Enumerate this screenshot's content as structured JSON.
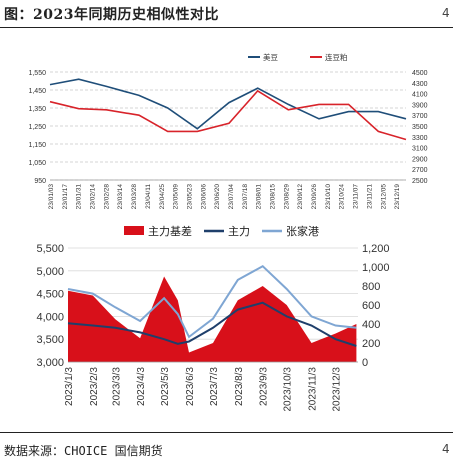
{
  "title": "图：2023年同期历史相似性对比",
  "title_right_glyph": "4",
  "source": "数据来源：CHOICE 国信期货",
  "source_right_glyph": "4",
  "colors": {
    "blue": "#1f4e79",
    "red": "#d8232a",
    "light_blue": "#7fa6d3",
    "fill_red": "#d8101a",
    "dark_blue": "#1f3f6b",
    "grid": "#c8c8c8"
  },
  "chart_data": [
    {
      "type": "line",
      "legend_position": "top-right",
      "grid": true,
      "series": [
        {
          "name": "美豆",
          "axis": "left",
          "color": "#1f4e79",
          "x": [
            "23/01/03",
            "23/02/01",
            "23/03/01",
            "23/04/03",
            "23/05/02",
            "23/06/01",
            "23/07/03",
            "23/08/01",
            "23/09/01",
            "23/10/02",
            "23/11/01",
            "23/12/01",
            "23/12/29"
          ],
          "values": [
            1480,
            1510,
            1470,
            1420,
            1350,
            1235,
            1380,
            1460,
            1370,
            1290,
            1330,
            1330,
            1290
          ]
        },
        {
          "name": "连豆粕",
          "axis": "right",
          "color": "#d8232a",
          "x": [
            "23/01/03",
            "23/02/01",
            "23/03/01",
            "23/04/03",
            "23/05/02",
            "23/06/01",
            "23/07/03",
            "23/08/01",
            "23/09/01",
            "23/10/02",
            "23/11/01",
            "23/12/01",
            "23/12/29"
          ],
          "values": [
            3950,
            3820,
            3800,
            3700,
            3400,
            3400,
            3550,
            4150,
            3800,
            3900,
            3900,
            3400,
            3250
          ]
        }
      ],
      "y_left": {
        "ticks": [
          "1,550",
          "1,450",
          "1,350",
          "1,250",
          "1,150",
          "1,050",
          "950"
        ],
        "min": 950,
        "max": 1550
      },
      "y_right": {
        "ticks": [
          "4500",
          "4300",
          "4100",
          "3900",
          "3700",
          "3500",
          "3300",
          "3100",
          "2900",
          "2700",
          "2500"
        ],
        "min": 2500,
        "max": 4500
      },
      "x_ticks": [
        "23/01/03",
        "23/01/17",
        "23/01/31",
        "23/02/14",
        "23/02/28",
        "23/03/14",
        "23/03/28",
        "23/04/11",
        "23/04/25",
        "23/05/09",
        "23/05/23",
        "23/06/06",
        "23/06/20",
        "23/07/04",
        "23/07/18",
        "23/08/01",
        "23/08/15",
        "23/08/29",
        "23/09/12",
        "23/09/26",
        "23/10/10",
        "23/10/24",
        "23/11/07",
        "23/11/21",
        "23/12/05",
        "23/12/19"
      ]
    },
    {
      "type": "area",
      "legend_position": "top",
      "grid": true,
      "series": [
        {
          "name": "主力基差",
          "axis": "right",
          "kind": "area",
          "color": "#d8101a",
          "x": [
            "2023/1/3",
            "2023/2/3",
            "2023/3/3",
            "2023/4/3",
            "2023/5/3",
            "2023/5/20",
            "2023/6/3",
            "2023/7/3",
            "2023/8/3",
            "2023/9/3",
            "2023/10/3",
            "2023/11/3",
            "2023/12/3",
            "2023/12/29"
          ],
          "values": [
            750,
            700,
            450,
            250,
            900,
            650,
            100,
            200,
            650,
            800,
            600,
            200,
            300,
            400
          ]
        },
        {
          "name": "主力",
          "axis": "left",
          "kind": "line",
          "color": "#1f3f6b",
          "x": [
            "2023/1/3",
            "2023/2/3",
            "2023/3/3",
            "2023/4/3",
            "2023/5/3",
            "2023/5/20",
            "2023/6/3",
            "2023/7/3",
            "2023/8/3",
            "2023/9/3",
            "2023/10/3",
            "2023/11/3",
            "2023/12/3",
            "2023/12/29"
          ],
          "values": [
            3850,
            3800,
            3750,
            3650,
            3500,
            3400,
            3450,
            3750,
            4150,
            4300,
            4000,
            3800,
            3500,
            3350
          ]
        },
        {
          "name": "张家港",
          "axis": "left",
          "kind": "line",
          "color": "#7fa6d3",
          "x": [
            "2023/1/3",
            "2023/2/3",
            "2023/3/3",
            "2023/4/3",
            "2023/5/3",
            "2023/5/20",
            "2023/6/3",
            "2023/7/3",
            "2023/8/3",
            "2023/9/3",
            "2023/10/3",
            "2023/11/3",
            "2023/12/3",
            "2023/12/29"
          ],
          "values": [
            4600,
            4500,
            4200,
            3900,
            4400,
            4050,
            3550,
            3950,
            4800,
            5100,
            4600,
            4000,
            3800,
            3750
          ]
        }
      ],
      "y_left": {
        "ticks": [
          "5,500",
          "5,000",
          "4,500",
          "4,000",
          "3,500",
          "3,000"
        ],
        "min": 3000,
        "max": 5500
      },
      "y_right": {
        "ticks": [
          "1,200",
          "1,000",
          "800",
          "600",
          "400",
          "200",
          "0"
        ],
        "min": 0,
        "max": 1200
      },
      "x_ticks": [
        "2023/1/3",
        "2023/2/3",
        "2023/3/3",
        "2023/4/3",
        "2023/5/3",
        "2023/6/3",
        "2023/7/3",
        "2023/8/3",
        "2023/9/3",
        "2023/10/3",
        "2023/11/3",
        "2023/12/3"
      ]
    }
  ]
}
